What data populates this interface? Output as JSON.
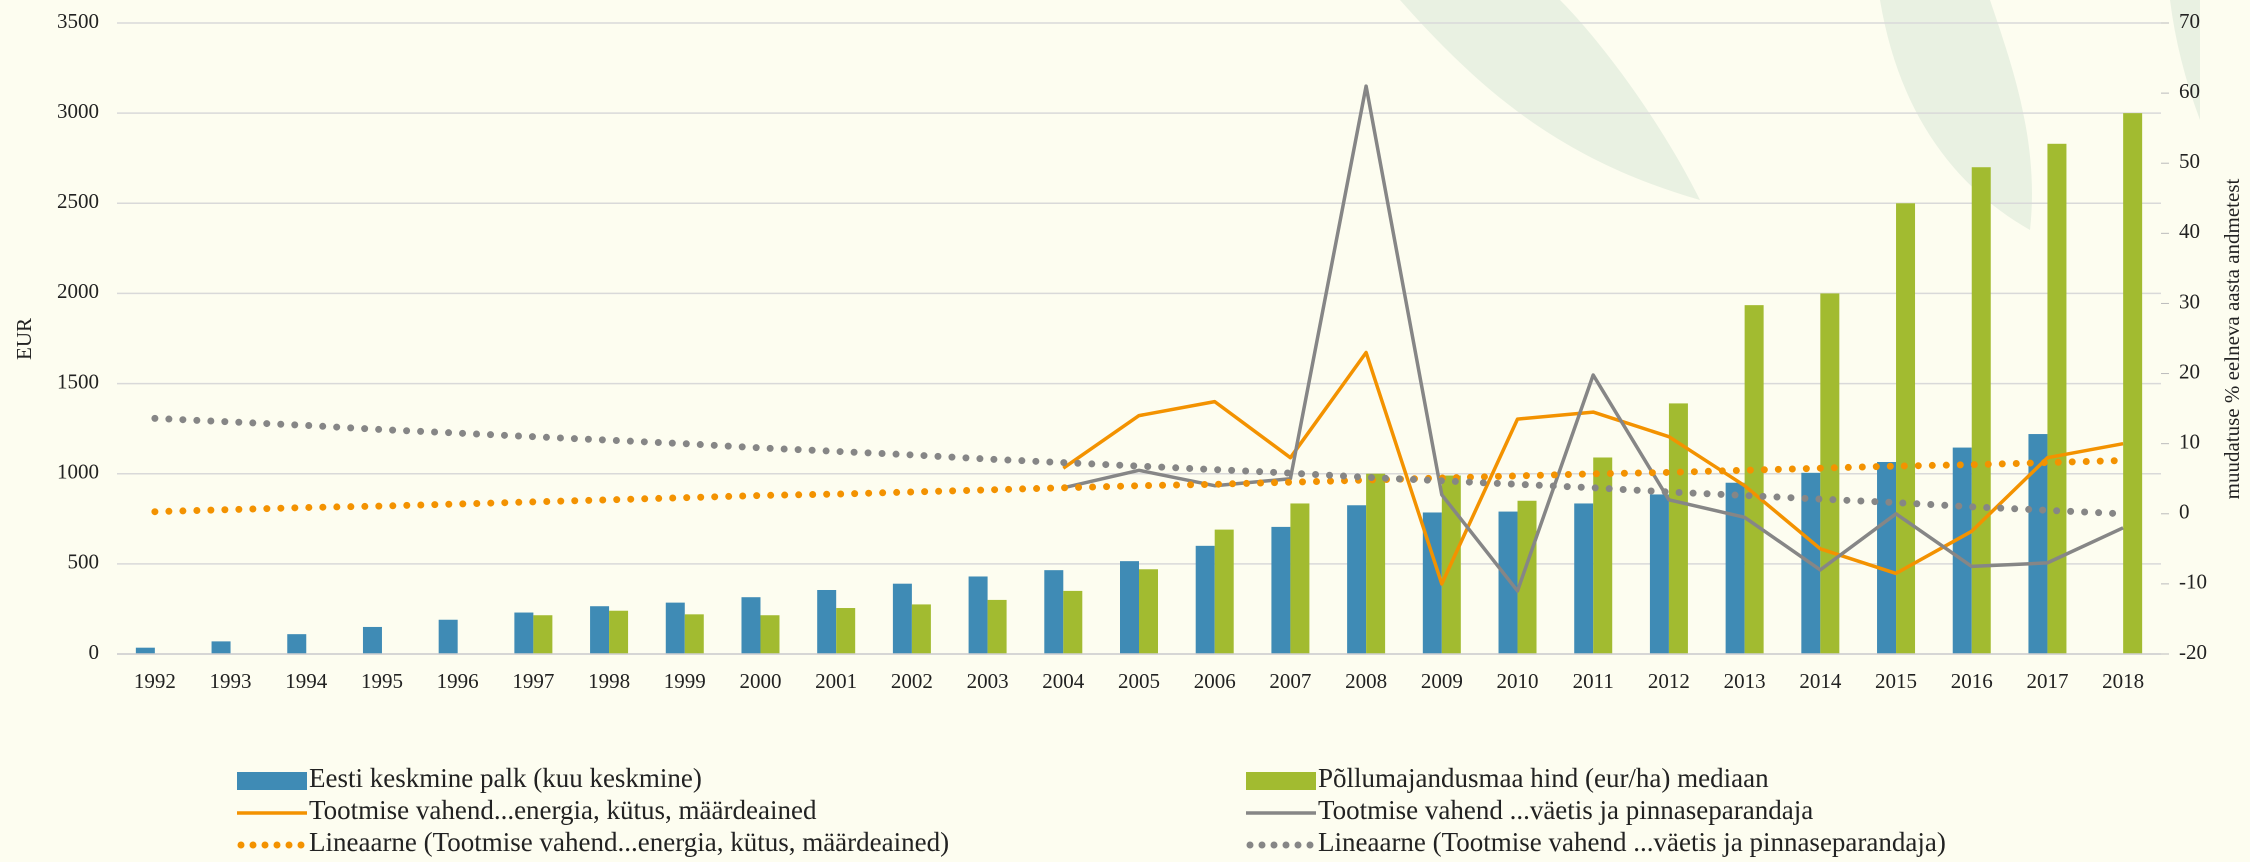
{
  "chart_data": {
    "type": "bar",
    "categories": [
      "1992",
      "1993",
      "1994",
      "1995",
      "1996",
      "1997",
      "1998",
      "1999",
      "2000",
      "2001",
      "2002",
      "2003",
      "2004",
      "2005",
      "2006",
      "2007",
      "2008",
      "2009",
      "2010",
      "2011",
      "2012",
      "2013",
      "2014",
      "2015",
      "2016",
      "2017",
      "2018"
    ],
    "ylabel": "EUR",
    "y2label": "muudatuse %  eelneva aasta andmetest",
    "ylim": [
      0,
      3500
    ],
    "yticks": [
      0,
      500,
      1000,
      1500,
      2000,
      2500,
      3000,
      3500
    ],
    "y2lim": [
      -20,
      70
    ],
    "y2ticks": [
      -20,
      -10,
      0,
      10,
      20,
      30,
      40,
      50,
      60,
      70
    ],
    "grid": true,
    "series": [
      {
        "name": "Eesti keskmine palk (kuu keskmine)",
        "type": "bar",
        "color": "#3f8bb5",
        "values": [
          35,
          70,
          110,
          150,
          190,
          230,
          265,
          285,
          315,
          355,
          390,
          430,
          465,
          515,
          600,
          705,
          825,
          785,
          790,
          835,
          885,
          950,
          1005,
          1065,
          1145,
          1220,
          null
        ]
      },
      {
        "name": "Põllumajandusmaa hind (eur/ha) mediaan",
        "type": "bar",
        "color": "#a2bb30",
        "values": [
          null,
          null,
          null,
          null,
          null,
          215,
          240,
          220,
          215,
          255,
          275,
          300,
          350,
          470,
          690,
          835,
          1000,
          990,
          850,
          1090,
          1390,
          1935,
          2000,
          2500,
          2700,
          2830,
          3000
        ]
      },
      {
        "name": "Tootmise vahend...energia, kütus, määrdeained",
        "type": "line",
        "axis": "y2",
        "color": "#f39200",
        "values": [
          null,
          null,
          null,
          null,
          null,
          null,
          null,
          null,
          null,
          null,
          null,
          null,
          6.5,
          14,
          16,
          8,
          23,
          -10,
          13.5,
          14.5,
          11,
          4,
          -5,
          -8.5,
          -2.5,
          8,
          10
        ]
      },
      {
        "name": "Tootmise vahend ...väetis ja pinnaseparandaja",
        "type": "line",
        "axis": "y2",
        "color": "#868686",
        "values": [
          null,
          null,
          null,
          null,
          null,
          null,
          null,
          null,
          null,
          null,
          null,
          null,
          3.7,
          6.2,
          4,
          5,
          61,
          2.7,
          -11,
          19.8,
          2,
          -0.5,
          -8,
          0,
          -7.5,
          -7,
          -2
        ]
      },
      {
        "name": "Lineaarne (Tootmise vahend...energia, kütus, määrdeained)",
        "type": "line",
        "dash": "dotted",
        "axis": "y2",
        "color": "#f39200",
        "values": [
          0.3,
          0.6,
          0.9,
          1.1,
          1.4,
          1.7,
          2.0,
          2.3,
          2.6,
          2.8,
          3.1,
          3.4,
          3.7,
          4.0,
          4.2,
          4.5,
          4.8,
          5.1,
          5.4,
          5.7,
          5.9,
          6.2,
          6.5,
          6.8,
          7.0,
          7.3,
          7.6
        ]
      },
      {
        "name": "Lineaarne (Tootmise vahend ...väetis ja pinnaseparandaja)",
        "type": "line",
        "dash": "dotted",
        "axis": "y2",
        "color": "#868686",
        "values": [
          13.6,
          13.1,
          12.6,
          12.0,
          11.5,
          11.0,
          10.5,
          10.0,
          9.4,
          8.9,
          8.4,
          7.8,
          7.3,
          6.8,
          6.3,
          5.8,
          5.2,
          4.7,
          4.2,
          3.7,
          3.1,
          2.6,
          2.1,
          1.6,
          1.0,
          0.5,
          0.0
        ]
      }
    ]
  }
}
